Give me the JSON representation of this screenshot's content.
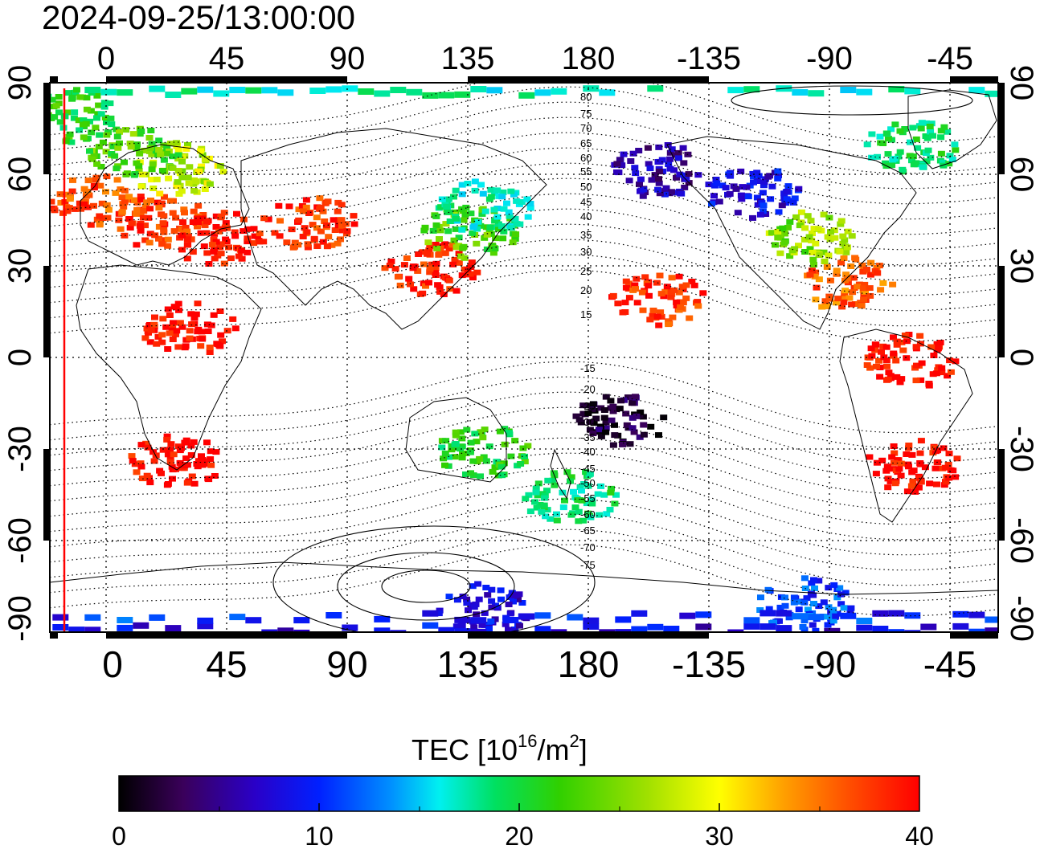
{
  "title": "2024-09-25/13:00:00",
  "colorbar": {
    "label_main": "TEC  [10",
    "label_sup1": "16",
    "label_mid": "/m",
    "label_sup2": "2",
    "label_end": "]",
    "ticks": [
      "0",
      "10",
      "20",
      "30",
      "40"
    ],
    "range": [
      0,
      40
    ]
  },
  "axes": {
    "lon_top": [
      "0",
      "45",
      "90",
      "135",
      "180",
      "-135",
      "-90",
      "-45"
    ],
    "lon_bottom": [
      "0",
      "45",
      "90",
      "135",
      "180",
      "-135",
      "-90",
      "-45"
    ],
    "lat_left": [
      "90",
      "60",
      "30",
      "0",
      "-30",
      "-60",
      "-90"
    ],
    "lat_right": [
      "90",
      "60",
      "30",
      "0",
      "-30",
      "-60",
      "-90"
    ]
  },
  "mag_lat_labels": [
    "80",
    "75",
    "70",
    "65",
    "60",
    "55",
    "50",
    "45",
    "40",
    "35",
    "30",
    "25",
    "20",
    "15",
    "-15",
    "-20",
    "-25",
    "-30",
    "-35",
    "-40",
    "-45",
    "-50",
    "-55",
    "-60",
    "-65",
    "-70",
    "-75"
  ],
  "colors": {
    "scale": [
      "#000000",
      "#3a005a",
      "#2a00c8",
      "#0020ff",
      "#0090ff",
      "#00f0f0",
      "#00e060",
      "#30d000",
      "#a0e000",
      "#ffff00",
      "#ffa000",
      "#ff5000",
      "#ff0000"
    ],
    "terminator": "#ff0000"
  },
  "tec_regions": [
    {
      "lon": -5,
      "lat": 52,
      "tec": 37
    },
    {
      "lon": 20,
      "lat": 45,
      "tec": 38
    },
    {
      "lon": 25,
      "lat": 62,
      "tec": 28
    },
    {
      "lon": 10,
      "lat": 68,
      "tec": 24
    },
    {
      "lon": -15,
      "lat": 80,
      "tec": 22
    },
    {
      "lon": 40,
      "lat": 40,
      "tec": 40
    },
    {
      "lon": 30,
      "lat": 10,
      "tec": 40
    },
    {
      "lon": 25,
      "lat": -33,
      "tec": 40
    },
    {
      "lon": 120,
      "lat": 30,
      "tec": 39
    },
    {
      "lon": 135,
      "lat": 42,
      "tec": 24
    },
    {
      "lon": 140,
      "lat": 50,
      "tec": 18
    },
    {
      "lon": 75,
      "lat": 45,
      "tec": 38
    },
    {
      "lon": 140,
      "lat": -30,
      "tec": 22
    },
    {
      "lon": 172,
      "lat": -45,
      "tec": 20
    },
    {
      "lon": -155,
      "lat": 62,
      "tec": 6
    },
    {
      "lon": -120,
      "lat": 55,
      "tec": 8
    },
    {
      "lon": -100,
      "lat": 40,
      "tec": 26
    },
    {
      "lon": -85,
      "lat": 25,
      "tec": 36
    },
    {
      "lon": -60,
      "lat": 0,
      "tec": 40
    },
    {
      "lon": -60,
      "lat": -35,
      "tec": 40
    },
    {
      "lon": -60,
      "lat": 70,
      "tec": 20
    },
    {
      "lon": -155,
      "lat": 20,
      "tec": 38
    },
    {
      "lon": -100,
      "lat": -80,
      "tec": 11
    },
    {
      "lon": 140,
      "lat": -82,
      "tec": 8
    },
    {
      "lon": -170,
      "lat": -20,
      "tec": 2
    }
  ]
}
